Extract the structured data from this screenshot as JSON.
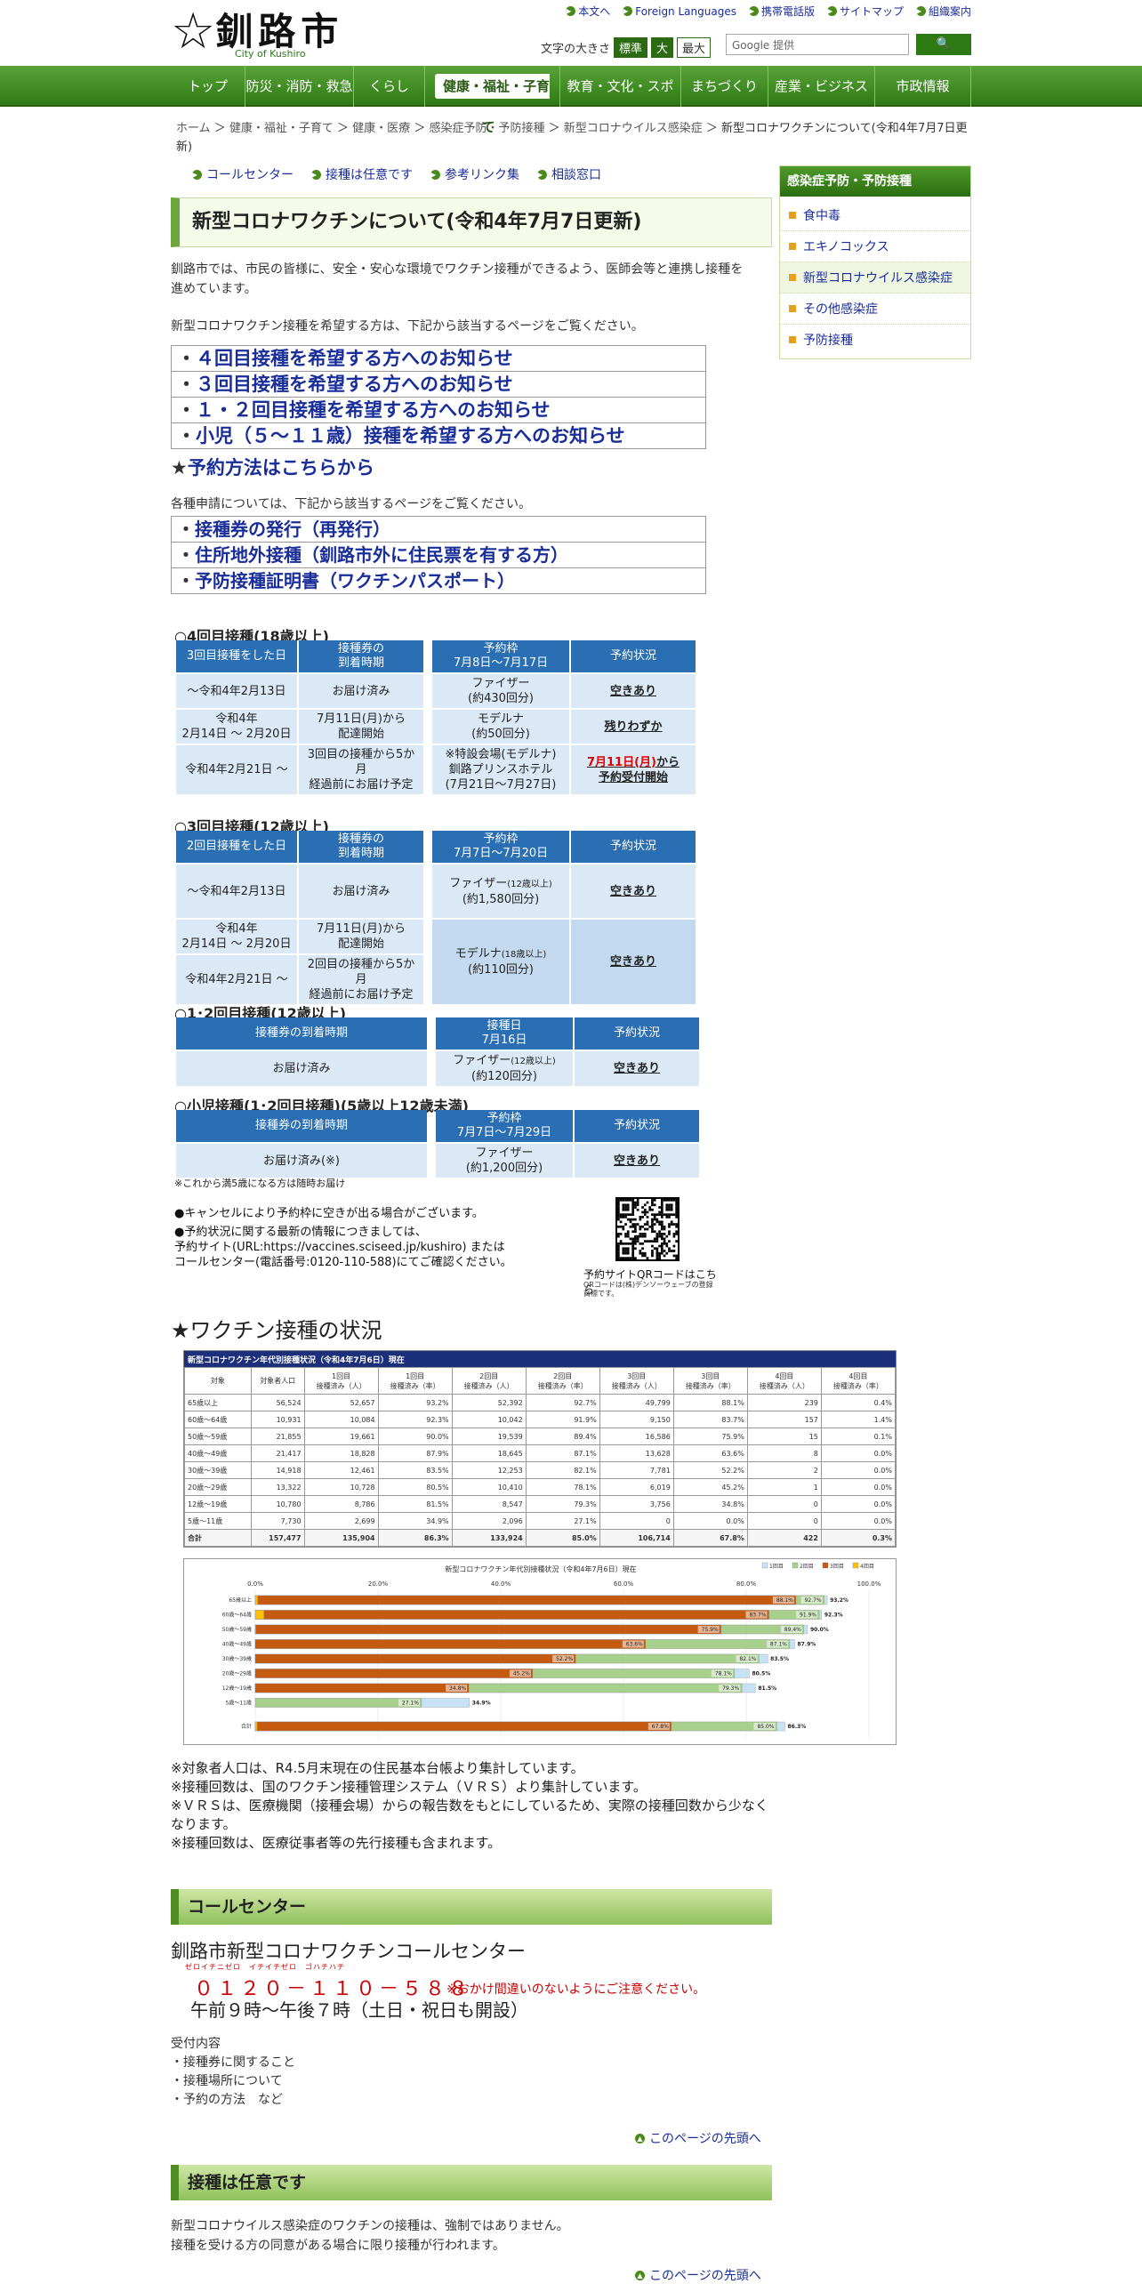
{
  "header": {
    "site_name": "釧路市",
    "site_sub": "City of Kushiro",
    "top_links": [
      "本文へ",
      "Foreign Languages",
      "携帯電話版",
      "サイトマップ",
      "組織案内"
    ],
    "font_size_label": "文字の大きさ",
    "font_sizes": [
      "標準",
      "大",
      "最大"
    ],
    "search_placeholder": "Google 提供",
    "search_button": "🔍"
  },
  "nav": [
    "トップ",
    "防災・消防・救急",
    "くらし",
    "健康・福祉・子育て",
    "教育・文化・スポーツ",
    "まちづくり",
    "産業・ビジネス",
    "市政情報"
  ],
  "breadcrumb": [
    "ホーム",
    "健康・福祉・子育て",
    "健康・医療",
    "感染症予防・予防接種",
    "新型コロナウイルス感染症"
  ],
  "breadcrumb_current": "新型コロナワクチンについて(令和4年7月7日更新)",
  "anchors": [
    "コールセンター",
    "接種は任意です",
    "参考リンク集",
    "相談窓口"
  ],
  "title": "新型コロナワクチンについて(令和4年7月7日更新)",
  "intro": "釧路市では、市民の皆様に、安全・安心な環境でワクチン接種ができるよう、医師会等と連携し接種を進めています。",
  "intro2": "新型コロナワクチン接種を希望する方は、下記から該当するページをご覧ください。",
  "links1": [
    "・４回目接種を希望する方へのお知らせ",
    "・３回目接種を希望する方へのお知らせ",
    "・１・２回目接種を希望する方へのお知らせ",
    "・小児（５～１１歳）接種を希望する方へのお知らせ"
  ],
  "reserve_star": "★",
  "reserve_link": "予約方法はこちらから",
  "intro3": "各種申請については、下記から該当するページをご覧ください。",
  "links2": [
    "・接種券の発行（再発行）",
    "・住所地外接種（釧路市外に住民票を有する方）",
    "・予防接種証明書（ワクチンパスポート）"
  ],
  "t4": {
    "heading": "○4回目接種(18歳以上)",
    "h": [
      "3回目接種をした日",
      "接種券の\n到着時期",
      "予約枠\n7月8日～7月17日",
      "予約状況"
    ],
    "rows": [
      [
        "～令和4年2月13日",
        "お届け済み",
        "ファイザー\n(約430回分)",
        "空きあり"
      ],
      [
        "令和4年\n2月14日 ～ 2月20日",
        "7月11日(月)から\n配達開始",
        "モデルナ\n(約50回分)",
        "残りわずか"
      ],
      [
        "令和4年2月21日 ～",
        "3回目の接種から5か月\n経過前にお届け予定",
        "※特設会場(モデルナ)\n釧路プリンスホテル\n(7月21日～7月27日)",
        "7月11日(月)から\n予約受付開始"
      ]
    ]
  },
  "t3": {
    "heading": "○3回目接種(12歳以上)",
    "h": [
      "2回目接種をした日",
      "接種券の\n到着時期",
      "予約枠\n7月7日～7月20日",
      "予約状況"
    ],
    "rows": [
      [
        "～令和4年2月13日",
        "お届け済み",
        "ファイザー(12歳以上)\n(約1,580回分)",
        "空きあり"
      ],
      [
        "令和4年\n2月14日 ～ 2月20日",
        "7月11日(月)から\n配達開始",
        "モデルナ(18歳以上)\n(約110回分)",
        "空きあり"
      ],
      [
        "令和4年2月21日 ～",
        "2回目の接種から5か月\n経過前にお届け予定",
        "",
        ""
      ]
    ]
  },
  "t12": {
    "heading": "○1･2回目接種(12歳以上)",
    "h": [
      "接種券の到着時期",
      "接種日\n7月16日",
      "予約状況"
    ],
    "rows": [
      [
        "お届け済み",
        "ファイザー(12歳以上)\n(約120回分)",
        "空きあり"
      ]
    ]
  },
  "tkid": {
    "heading": "○小児接種(1･2回目接種)(5歳以上12歳未満)",
    "h": [
      "接種券の到着時期",
      "予約枠\n7月7日～7月29日",
      "予約状況"
    ],
    "rows": [
      [
        "お届け済み(※)",
        "ファイザー\n(約1,200回分)",
        "空きあり"
      ]
    ]
  },
  "kid_note": "※これから満5歳になる方は随時お届け",
  "cancel_notes": [
    "●キャンセルにより予約枠に空きが出る場合がございます。",
    "●予約状況に関する最新の情報につきましては、\n予約サイト(URL:https://vaccines.sciseed.jp/kushiro) または\nコールセンター(電話番号:0120-110-588)にてご確認ください。"
  ],
  "qr_caption": "予約サイトQRコードはこちら",
  "qr_sub": "QRコードは(株)デンソーウェーブの登録商標です。",
  "status_title": "★ワクチン接種の状況",
  "stats": {
    "title": "新型コロナワクチン年代別接種状況（令和4年7月6日）現在",
    "cols": [
      "対象",
      "対象者人口",
      "1回目\n接種済み（人）",
      "1回目\n接種済み（率）",
      "2回目\n接種済み（人）",
      "2回目\n接種済み（率）",
      "3回目\n接種済み（人）",
      "3回目\n接種済み（率）",
      "4回目\n接種済み（人）",
      "4回目\n接種済み（率）"
    ],
    "rows": [
      [
        "65歳以上",
        "56,524",
        "52,657",
        "93.2%",
        "52,392",
        "92.7%",
        "49,799",
        "88.1%",
        "239",
        "0.4%"
      ],
      [
        "60歳～64歳",
        "10,931",
        "10,084",
        "92.3%",
        "10,042",
        "91.9%",
        "9,150",
        "83.7%",
        "157",
        "1.4%"
      ],
      [
        "50歳～59歳",
        "21,855",
        "19,661",
        "90.0%",
        "19,539",
        "89.4%",
        "16,586",
        "75.9%",
        "15",
        "0.1%"
      ],
      [
        "40歳～49歳",
        "21,417",
        "18,828",
        "87.9%",
        "18,645",
        "87.1%",
        "13,628",
        "63.6%",
        "8",
        "0.0%"
      ],
      [
        "30歳～39歳",
        "14,918",
        "12,461",
        "83.5%",
        "12,253",
        "82.1%",
        "7,781",
        "52.2%",
        "2",
        "0.0%"
      ],
      [
        "20歳～29歳",
        "13,322",
        "10,728",
        "80.5%",
        "10,410",
        "78.1%",
        "6,019",
        "45.2%",
        "1",
        "0.0%"
      ],
      [
        "12歳～19歳",
        "10,780",
        "8,786",
        "81.5%",
        "8,547",
        "79.3%",
        "3,756",
        "34.8%",
        "0",
        "0.0%"
      ],
      [
        "5歳～11歳",
        "7,730",
        "2,699",
        "34.9%",
        "2,096",
        "27.1%",
        "0",
        "0.0%",
        "0",
        "0.0%"
      ]
    ],
    "total": [
      "合計",
      "157,477",
      "135,904",
      "86.3%",
      "133,924",
      "85.0%",
      "106,714",
      "67.8%",
      "422",
      "0.3%"
    ]
  },
  "chart_data": {
    "type": "bar",
    "title": "新型コロナワクチン年代別接種状況（令和4年7月6日）現在",
    "categories": [
      "65歳以上",
      "60歳～64歳",
      "50歳～59歳",
      "40歳～49歳",
      "30歳～39歳",
      "20歳～29歳",
      "12歳～19歳",
      "5歳～11歳",
      "合計"
    ],
    "series": [
      {
        "name": "1回目",
        "values": [
          93.2,
          92.3,
          90.0,
          87.9,
          83.5,
          80.5,
          81.5,
          34.9,
          86.3
        ],
        "color": "#c7e2f5"
      },
      {
        "name": "2回目",
        "values": [
          92.7,
          91.9,
          89.4,
          87.1,
          82.1,
          78.1,
          79.3,
          27.1,
          85.0
        ],
        "color": "#a8d08d"
      },
      {
        "name": "3回目",
        "values": [
          88.1,
          83.7,
          75.9,
          63.6,
          52.2,
          45.2,
          34.8,
          0,
          67.8
        ],
        "color": "#c55a11"
      },
      {
        "name": "4回目",
        "values": [
          0.4,
          1.4,
          0.1,
          0.0,
          0.0,
          0.0,
          0.0,
          0.0,
          0.3
        ],
        "color": "#ffc000"
      }
    ],
    "x_ticks": [
      "0.0%",
      "20.0%",
      "40.0%",
      "60.0%",
      "80.0%",
      "100.0%"
    ],
    "xlim": [
      0,
      100
    ],
    "legend": "top-right"
  },
  "notes": [
    "※対象者人口は、R4.5月末現在の住民基本台帳より集計しています。",
    "※接種回数は、国のワクチン接種管理システム（ＶＲＳ）より集計しています。",
    "※ＶＲＳは、医療機関（接種会場）からの報告数をもとにしているため、実際の接種回数から少なくなります。",
    "※接種回数は、医療従事者等の先行接種も含まれます。"
  ],
  "call": {
    "heading": "コールセンター",
    "title": "釧路市新型コロナワクチンコールセンター",
    "ruby": "ゼロイチニゼロ　イチイチゼロ　ゴハチハチ",
    "tel": "０１２０－１１０－５８８",
    "warn": "※おかけ間違いのないようにご注意ください。",
    "hours": "午前９時～午後７時（土日・祝日も開設）",
    "recv": "受付内容",
    "items": [
      "・接種券に関すること",
      "・接種場所について",
      "・予約の方法　など"
    ]
  },
  "to_top": "このページの先頭へ",
  "voluntary": {
    "heading": "接種は任意です",
    "p1": "新型コロナウイルス感染症のワクチンの接種は、強制ではありません。",
    "p2": "接種を受ける方の同意がある場合に限り接種が行われます。"
  },
  "sidebar": {
    "title": "感染症予防・予防接種",
    "items": [
      "食中毒",
      "エキノコックス",
      "新型コロナウイルス感染症",
      "その他感染症",
      "予防接種"
    ]
  }
}
